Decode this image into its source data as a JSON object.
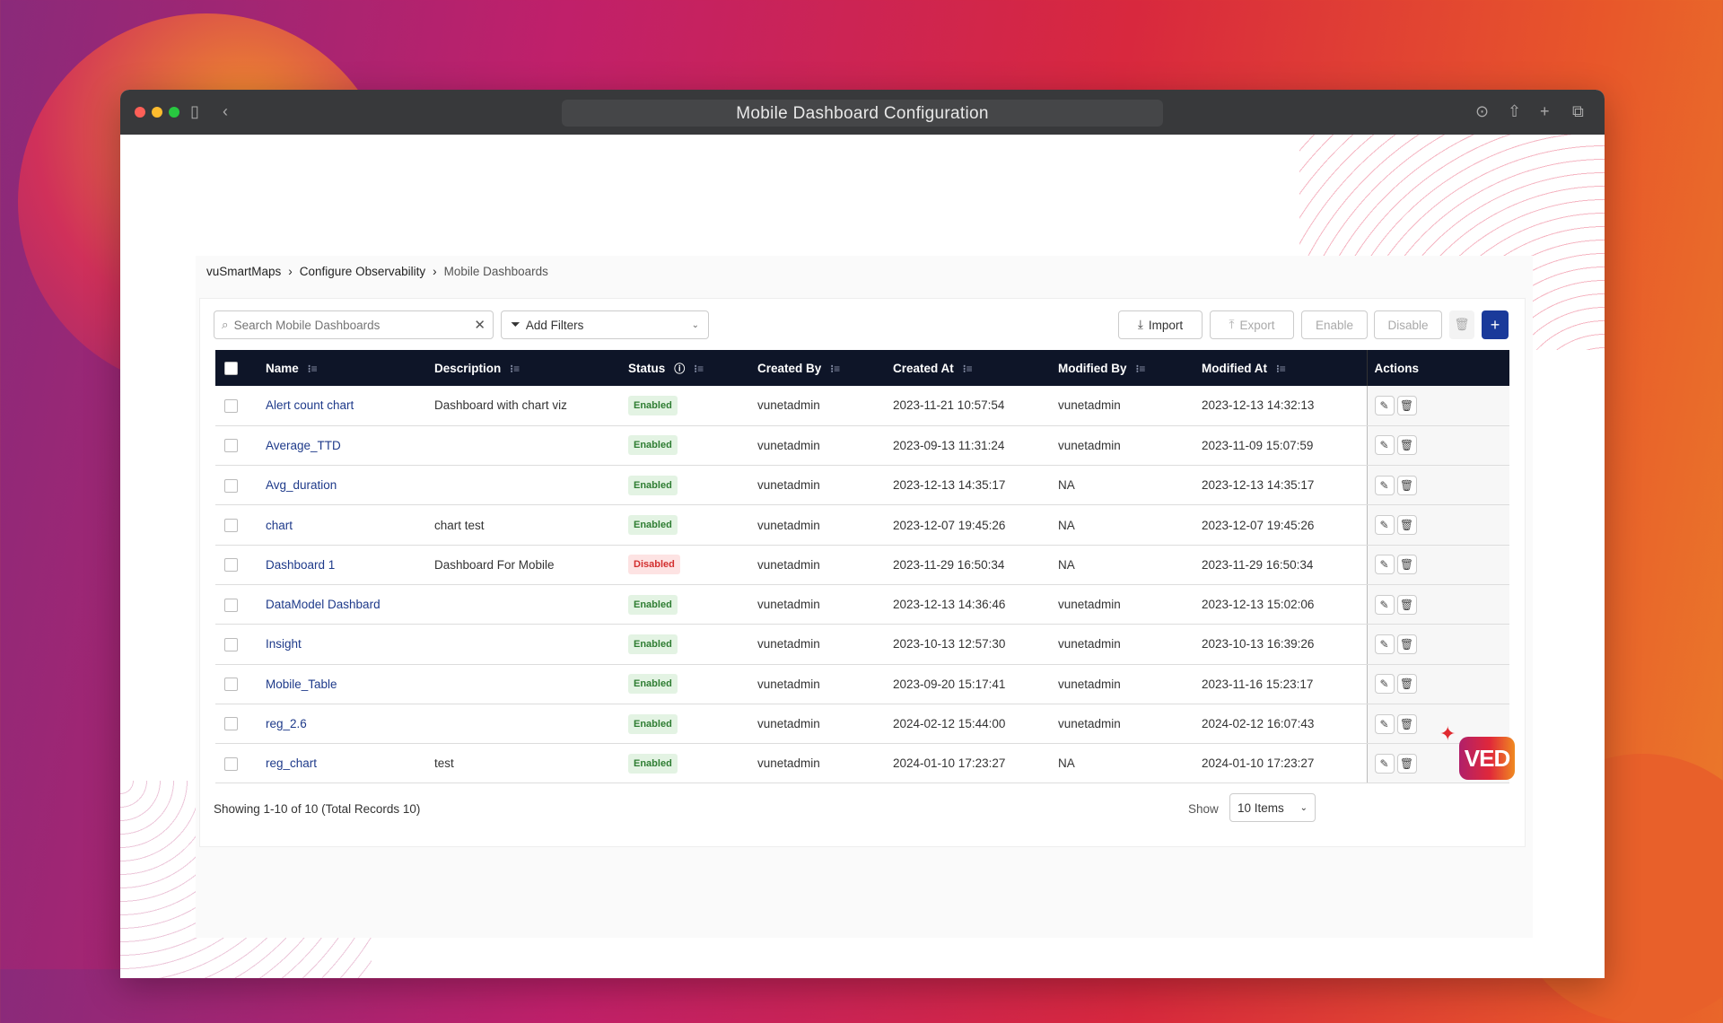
{
  "window": {
    "title": "Mobile Dashboard Configuration"
  },
  "breadcrumb": [
    "vuSmartMaps",
    "Configure Observability",
    "Mobile Dashboards"
  ],
  "toolbar": {
    "search_placeholder": "Search Mobile Dashboards",
    "filters_label": "Add Filters",
    "import": "Import",
    "export": "Export",
    "enable": "Enable",
    "disable": "Disable",
    "add": "+"
  },
  "table": {
    "headers": [
      "Name",
      "Description",
      "Status",
      "Created By",
      "Created At",
      "Modified By",
      "Modified At",
      "Actions"
    ],
    "rows": [
      [
        "Alert count chart",
        "Dashboard with chart viz",
        "Enabled",
        "vunetadmin",
        "2023-11-21 10:57:54",
        "vunetadmin",
        "2023-12-13 14:32:13"
      ],
      [
        "Average_TTD",
        "",
        "Enabled",
        "vunetadmin",
        "2023-09-13 11:31:24",
        "vunetadmin",
        "2023-11-09 15:07:59"
      ],
      [
        "Avg_duration",
        "",
        "Enabled",
        "vunetadmin",
        "2023-12-13 14:35:17",
        "NA",
        "2023-12-13 14:35:17"
      ],
      [
        "chart",
        "chart test",
        "Enabled",
        "vunetadmin",
        "2023-12-07 19:45:26",
        "NA",
        "2023-12-07 19:45:26"
      ],
      [
        "Dashboard 1",
        "Dashboard For Mobile",
        "Disabled",
        "vunetadmin",
        "2023-11-29 16:50:34",
        "NA",
        "2023-11-29 16:50:34"
      ],
      [
        "DataModel Dashbard",
        "",
        "Enabled",
        "vunetadmin",
        "2023-12-13 14:36:46",
        "vunetadmin",
        "2023-12-13 15:02:06"
      ],
      [
        "Insight",
        "",
        "Enabled",
        "vunetadmin",
        "2023-10-13 12:57:30",
        "vunetadmin",
        "2023-10-13 16:39:26"
      ],
      [
        "Mobile_Table",
        "",
        "Enabled",
        "vunetadmin",
        "2023-09-20 15:17:41",
        "vunetadmin",
        "2023-11-16 15:23:17"
      ],
      [
        "reg_2.6",
        "",
        "Enabled",
        "vunetadmin",
        "2024-02-12 15:44:00",
        "vunetadmin",
        "2024-02-12 16:07:43"
      ],
      [
        "reg_chart",
        "test",
        "Enabled",
        "vunetadmin",
        "2024-01-10 17:23:27",
        "NA",
        "2024-01-10 17:23:27"
      ]
    ]
  },
  "footer": {
    "summary": "Showing 1-10 of 10 (Total Records 10)",
    "show_label": "Show",
    "page_size": "10 Items"
  },
  "badge": {
    "logo": "VED"
  },
  "colors": {
    "header_bg": "#0e1528",
    "accent": "#1e3a8a",
    "enabled": "#2e7d32",
    "disabled": "#d32f2f"
  }
}
